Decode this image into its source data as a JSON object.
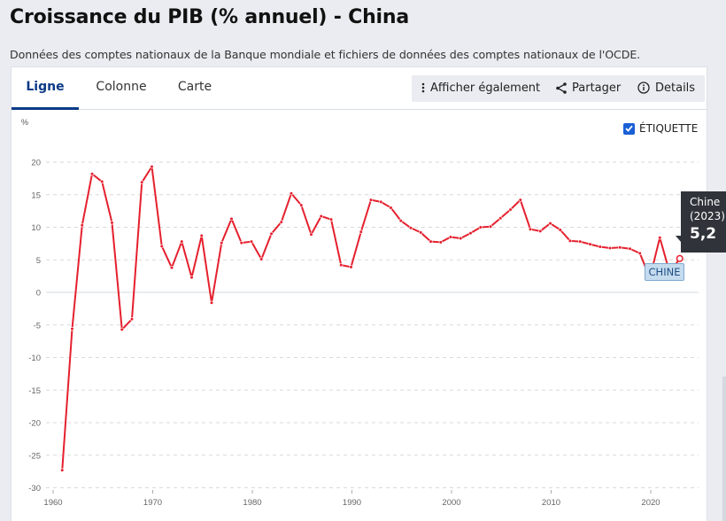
{
  "header": {
    "title": "Croissance du PIB (% annuel) - China",
    "subtitle": "Données des comptes nationaux de la Banque mondiale et fichiers de données des comptes nationaux de l'OCDE."
  },
  "tabs": [
    {
      "label": "Ligne",
      "active": true
    },
    {
      "label": "Colonne",
      "active": false
    },
    {
      "label": "Carte",
      "active": false
    }
  ],
  "toolbar": {
    "also_show_label": "Afficher également",
    "share_label": "Partager",
    "details_label": "Details"
  },
  "label_toggle": {
    "label": "ÉTIQUETTE",
    "checked": true
  },
  "tooltip": {
    "country": "Chine",
    "year": "(2023)",
    "value": "5,2"
  },
  "series_label": "CHINE",
  "colors": {
    "line": "#e5202e",
    "accent": "#0b3a86",
    "checkbox": "#1a5fd6",
    "tooltip_bg": "#30343a"
  },
  "chart_data": {
    "type": "line",
    "title": "Croissance du PIB (% annuel) - China",
    "xlabel": "",
    "ylabel": "%",
    "xlim": [
      1960,
      2023
    ],
    "ylim": [
      -30,
      20
    ],
    "yticks": [
      20,
      15,
      10,
      5,
      0,
      -5,
      -10,
      -15,
      -20,
      -25,
      -30
    ],
    "xticks": [
      1960,
      1970,
      1980,
      1990,
      2000,
      2010,
      2020
    ],
    "grid": true,
    "legend": "none",
    "series": [
      {
        "name": "Chine",
        "x": [
          1961,
          1962,
          1963,
          1964,
          1965,
          1966,
          1967,
          1968,
          1969,
          1970,
          1971,
          1972,
          1973,
          1974,
          1975,
          1976,
          1977,
          1978,
          1979,
          1980,
          1981,
          1982,
          1983,
          1984,
          1985,
          1986,
          1987,
          1988,
          1989,
          1990,
          1991,
          1992,
          1993,
          1994,
          1995,
          1996,
          1997,
          1998,
          1999,
          2000,
          2001,
          2002,
          2003,
          2004,
          2005,
          2006,
          2007,
          2008,
          2009,
          2010,
          2011,
          2012,
          2013,
          2014,
          2015,
          2016,
          2017,
          2018,
          2019,
          2020,
          2021,
          2022,
          2023
        ],
        "values": [
          -27.3,
          -5.6,
          10.3,
          18.2,
          17.0,
          10.7,
          -5.7,
          -4.1,
          16.9,
          19.3,
          7.1,
          3.8,
          7.8,
          2.3,
          8.7,
          -1.6,
          7.6,
          11.3,
          7.6,
          7.8,
          5.1,
          9.0,
          10.8,
          15.2,
          13.4,
          8.9,
          11.7,
          11.2,
          4.2,
          3.9,
          9.3,
          14.2,
          13.9,
          13.0,
          11.0,
          9.9,
          9.2,
          7.8,
          7.7,
          8.5,
          8.3,
          9.1,
          10.0,
          10.1,
          11.4,
          12.7,
          14.2,
          9.7,
          9.4,
          10.6,
          9.6,
          7.9,
          7.8,
          7.4,
          7.0,
          6.8,
          6.9,
          6.7,
          6.0,
          2.2,
          8.4,
          3.0,
          5.2
        ]
      }
    ]
  }
}
